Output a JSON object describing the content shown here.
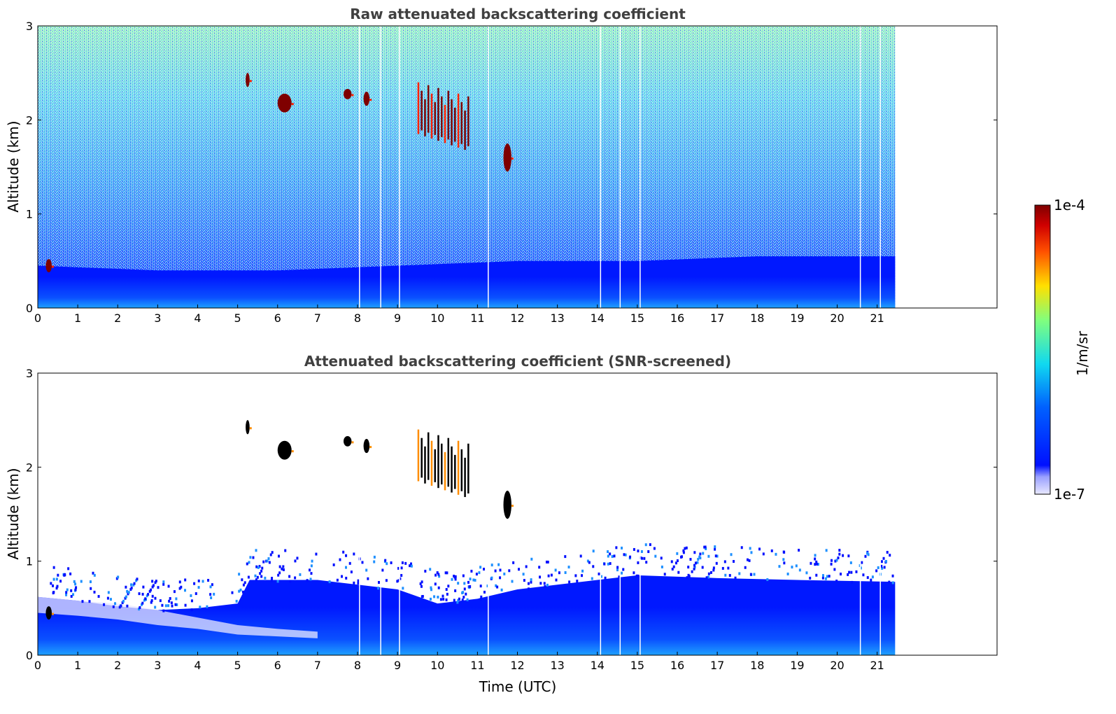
{
  "chart_data": [
    {
      "type": "heatmap",
      "title": "Raw attenuated backscattering coefficient",
      "xlabel": "",
      "ylabel": "Altitude (km)",
      "xlim": [
        0,
        24
      ],
      "ylim": [
        0,
        3
      ],
      "x_ticks": [
        "0",
        "1",
        "2",
        "3",
        "4",
        "5",
        "6",
        "7",
        "8",
        "9",
        "10",
        "11",
        "12",
        "13",
        "14",
        "15",
        "16",
        "17",
        "18",
        "19",
        "20",
        "21"
      ],
      "y_ticks": [
        "0",
        "1",
        "2",
        "3"
      ],
      "data_extent_hours": [
        0,
        21.45
      ],
      "gap_times_utc": [
        8.05,
        8.58,
        9.05,
        11.27,
        14.08,
        14.57,
        15.07,
        20.58,
        21.08
      ],
      "boundary_layer_top_km": [
        {
          "x": 0,
          "y": 0.45
        },
        {
          "x": 3,
          "y": 0.4
        },
        {
          "x": 6,
          "y": 0.4
        },
        {
          "x": 9,
          "y": 0.45
        },
        {
          "x": 12,
          "y": 0.5
        },
        {
          "x": 15,
          "y": 0.5
        },
        {
          "x": 18,
          "y": 0.55
        },
        {
          "x": 21.45,
          "y": 0.55
        }
      ],
      "cloud_features": [
        {
          "x_start": 0.2,
          "x_end": 0.35,
          "y_bottom": 0.38,
          "y_top": 0.52
        },
        {
          "x_start": 5.2,
          "x_end": 5.3,
          "y_bottom": 2.35,
          "y_top": 2.5
        },
        {
          "x_start": 6.0,
          "x_end": 6.35,
          "y_bottom": 2.08,
          "y_top": 2.28
        },
        {
          "x_start": 7.65,
          "x_end": 7.85,
          "y_bottom": 2.22,
          "y_top": 2.33
        },
        {
          "x_start": 8.15,
          "x_end": 8.3,
          "y_bottom": 2.15,
          "y_top": 2.3
        },
        {
          "x_start": 9.5,
          "x_end": 10.75,
          "y_bottom": 1.65,
          "y_top": 2.4
        },
        {
          "x_start": 11.65,
          "x_end": 11.85,
          "y_bottom": 1.45,
          "y_top": 1.75
        }
      ],
      "colorscale": "jet, logarithmic"
    },
    {
      "type": "heatmap",
      "title": "Attenuated backscattering coefficient (SNR-screened)",
      "xlabel": "Time (UTC)",
      "ylabel": "Altitude (km)",
      "xlim": [
        0,
        24
      ],
      "ylim": [
        0,
        3
      ],
      "x_ticks": [
        "0",
        "1",
        "2",
        "3",
        "4",
        "5",
        "6",
        "7",
        "8",
        "9",
        "10",
        "11",
        "12",
        "13",
        "14",
        "15",
        "16",
        "17",
        "18",
        "19",
        "20",
        "21"
      ],
      "y_ticks": [
        "0",
        "1",
        "2",
        "3"
      ],
      "data_extent_hours": [
        0,
        21.45
      ],
      "screened_top_km": [
        {
          "x": 0,
          "y": 0.62
        },
        {
          "x": 1,
          "y": 0.58
        },
        {
          "x": 2,
          "y": 0.52
        },
        {
          "x": 3,
          "y": 0.48
        },
        {
          "x": 4,
          "y": 0.5
        },
        {
          "x": 5,
          "y": 0.55
        },
        {
          "x": 5.3,
          "y": 0.8
        },
        {
          "x": 7,
          "y": 0.8
        },
        {
          "x": 9,
          "y": 0.7
        },
        {
          "x": 10,
          "y": 0.55
        },
        {
          "x": 11,
          "y": 0.6
        },
        {
          "x": 12,
          "y": 0.7
        },
        {
          "x": 13,
          "y": 0.75
        },
        {
          "x": 14,
          "y": 0.8
        },
        {
          "x": 15,
          "y": 0.85
        },
        {
          "x": 17,
          "y": 0.82
        },
        {
          "x": 19,
          "y": 0.8
        },
        {
          "x": 21.45,
          "y": 0.78
        }
      ],
      "cloud_features": [
        {
          "x_start": 0.2,
          "x_end": 0.35,
          "y_bottom": 0.38,
          "y_top": 0.52
        },
        {
          "x_start": 5.2,
          "x_end": 5.3,
          "y_bottom": 2.35,
          "y_top": 2.5
        },
        {
          "x_start": 6.0,
          "x_end": 6.35,
          "y_bottom": 2.08,
          "y_top": 2.28
        },
        {
          "x_start": 7.65,
          "x_end": 7.85,
          "y_bottom": 2.22,
          "y_top": 2.33
        },
        {
          "x_start": 8.15,
          "x_end": 8.3,
          "y_bottom": 2.15,
          "y_top": 2.3
        },
        {
          "x_start": 9.5,
          "x_end": 10.75,
          "y_bottom": 1.65,
          "y_top": 2.4
        },
        {
          "x_start": 11.65,
          "x_end": 11.85,
          "y_bottom": 1.45,
          "y_top": 1.75
        }
      ],
      "colorscale": "jet, logarithmic"
    }
  ],
  "colorbar": {
    "label": "1/m/sr",
    "max_label": "1e-4",
    "min_label": "1e-7",
    "range": [
      1e-07,
      0.0001
    ],
    "scale": "log",
    "colormap": "jet"
  },
  "colors": {
    "dark_red": "#7f0000",
    "red": "#ff2000",
    "orange": "#ff8c00",
    "yellow": "#ffe000",
    "green": "#7fff7f",
    "cyan": "#10d8f0",
    "light_blue": "#1e90ff",
    "blue": "#0010ff",
    "pale": "#e8e8ff"
  }
}
